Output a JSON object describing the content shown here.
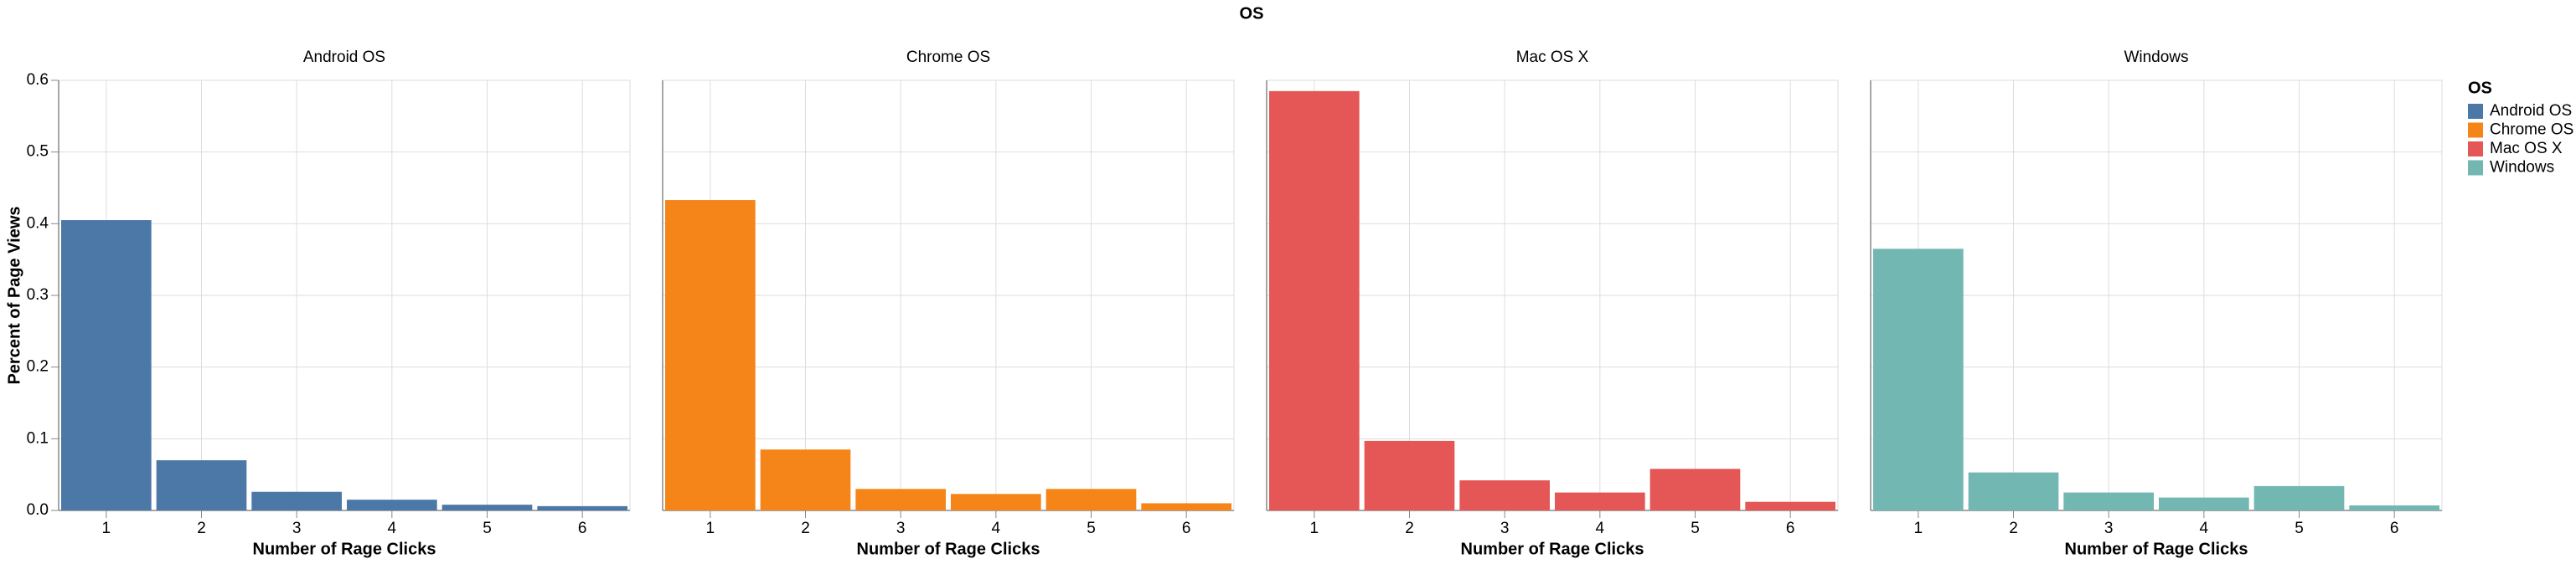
{
  "chart_data": {
    "type": "bar",
    "title": "OS",
    "x_label": "Number of Rage Clicks",
    "y_label": "Percent of Page Views",
    "categories": [
      "1",
      "2",
      "3",
      "4",
      "5",
      "6"
    ],
    "series": [
      {
        "name": "Android OS",
        "color": "#4c78a8",
        "values": [
          0.405,
          0.07,
          0.026,
          0.015,
          0.008,
          0.006
        ]
      },
      {
        "name": "Chrome OS",
        "color": "#f58518",
        "values": [
          0.433,
          0.085,
          0.03,
          0.023,
          0.03,
          0.01
        ]
      },
      {
        "name": "Mac OS X",
        "color": "#e45756",
        "values": [
          0.585,
          0.097,
          0.042,
          0.025,
          0.058,
          0.012
        ]
      },
      {
        "name": "Windows",
        "color": "#72b7b2",
        "values": [
          0.365,
          0.053,
          0.025,
          0.018,
          0.034,
          0.007
        ]
      }
    ],
    "ylim": [
      0,
      0.6
    ],
    "yticks": [
      {
        "value": 0,
        "label": "0.0"
      },
      0.1,
      0.2,
      0.3,
      0.4,
      0.5,
      0.6
    ],
    "grid": true,
    "legend_title": "OS",
    "legend_position": "right"
  }
}
